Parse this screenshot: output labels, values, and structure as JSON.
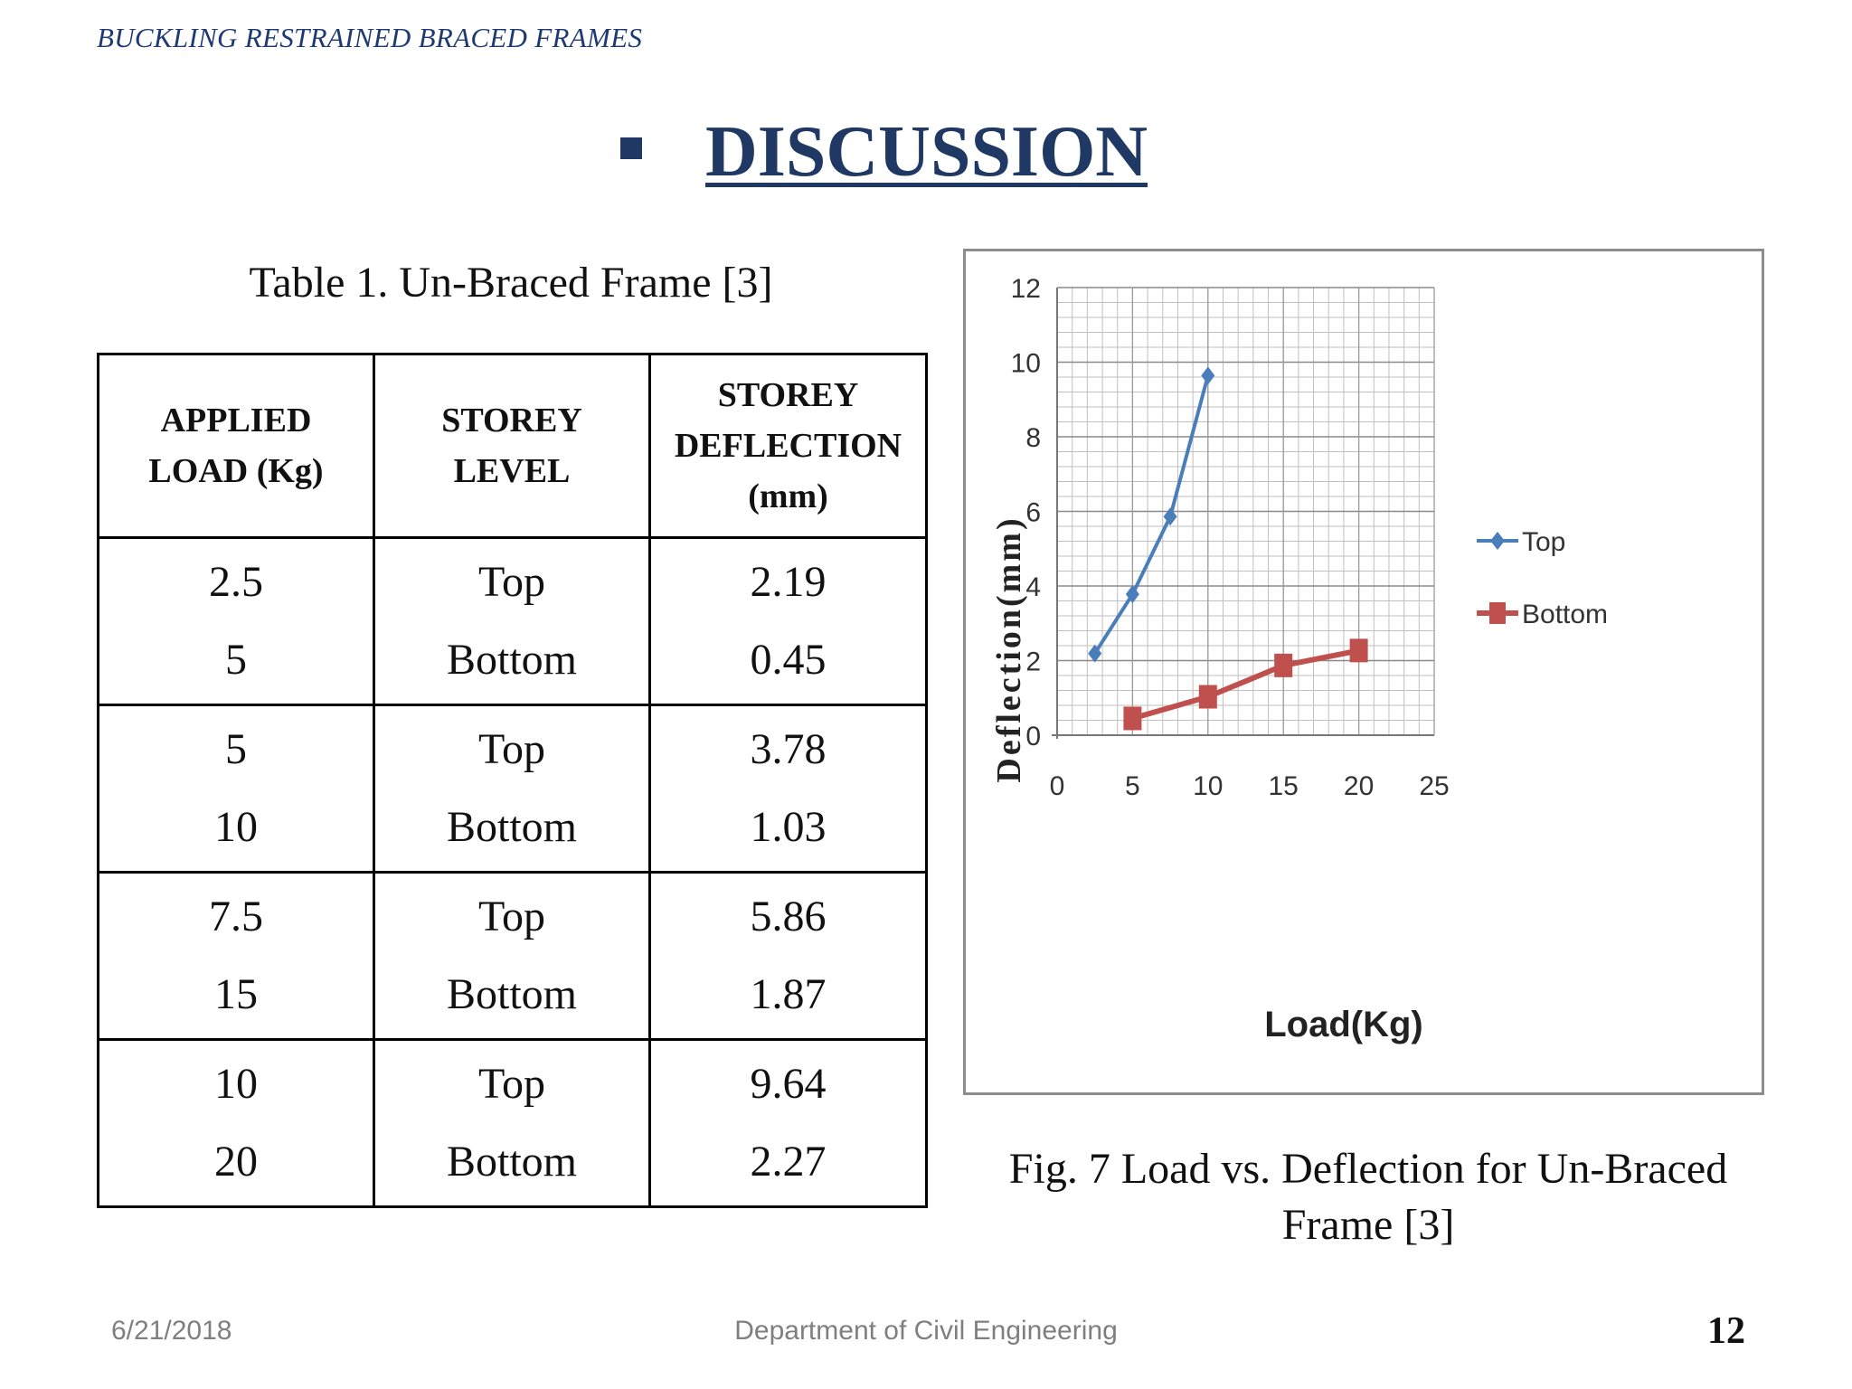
{
  "header": {
    "running_title": "BUCKLING RESTRAINED BRACED FRAMES"
  },
  "title": {
    "text": "DISCUSSION"
  },
  "table": {
    "caption": "Table 1. Un-Braced Frame [3]",
    "columns": [
      "APPLIED LOAD (Kg)",
      "STOREY LEVEL",
      "STOREY DEFLECTION (mm)"
    ],
    "rows": [
      {
        "load": [
          "2.5",
          "5"
        ],
        "level": [
          "Top",
          "Bottom"
        ],
        "deflection": [
          "2.19",
          "0.45"
        ]
      },
      {
        "load": [
          "5",
          "10"
        ],
        "level": [
          "Top",
          "Bottom"
        ],
        "deflection": [
          "3.78",
          "1.03"
        ]
      },
      {
        "load": [
          "7.5",
          "15"
        ],
        "level": [
          "Top",
          "Bottom"
        ],
        "deflection": [
          "5.86",
          "1.87"
        ]
      },
      {
        "load": [
          "10",
          "20"
        ],
        "level": [
          "Top",
          "Bottom"
        ],
        "deflection": [
          "9.64",
          "2.27"
        ]
      }
    ]
  },
  "chart_data": {
    "type": "line",
    "title": "",
    "xlabel": "Load(Kg)",
    "ylabel": "Deflection(mm)",
    "xlim": [
      0,
      25
    ],
    "ylim": [
      0,
      12
    ],
    "xticks": [
      0,
      5,
      10,
      15,
      20,
      25
    ],
    "yticks": [
      0,
      2,
      4,
      6,
      8,
      10,
      12
    ],
    "grid": true,
    "legend_position": "right",
    "series": [
      {
        "name": "Top",
        "color": "#4a7ebb",
        "marker": "diamond",
        "x": [
          2.5,
          5,
          7.5,
          10
        ],
        "y": [
          2.19,
          3.78,
          5.86,
          9.64
        ]
      },
      {
        "name": "Bottom",
        "color": "#c0504d",
        "marker": "square",
        "x": [
          5,
          10,
          15,
          20
        ],
        "y": [
          0.45,
          1.03,
          1.87,
          2.27
        ]
      }
    ]
  },
  "figure": {
    "caption": "Fig. 7 Load vs. Deflection for Un-Braced Frame  [3]"
  },
  "footer": {
    "date": "6/21/2018",
    "department": "Department of Civil Engineering",
    "page_number": "12"
  },
  "colors": {
    "title": "#1f3864",
    "header": "#1f3a73",
    "footer": "#7f7f7f"
  }
}
